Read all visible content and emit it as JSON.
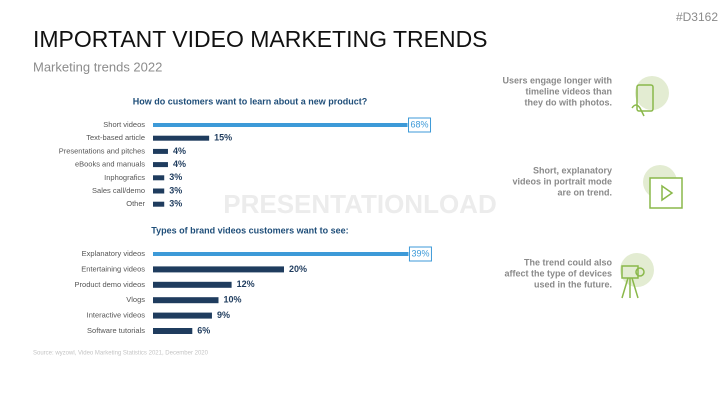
{
  "slide": {
    "code": "#D3162",
    "title": "IMPORTANT VIDEO MARKETING TRENDS",
    "subtitle": "Marketing trends 2022",
    "watermark": "PRESENTATIONLOAD",
    "source": "Source: wyzowl, Video Marketing Statistics 2021, December 2020",
    "notes": [
      {
        "lines": [
          "Users engage longer with",
          "timeline videos than",
          "they do with photos."
        ]
      },
      {
        "lines": [
          "Short, explanatory",
          "videos in portrait mode",
          "are on trend."
        ]
      },
      {
        "lines": [
          "The trend could also",
          "affect the type of devices",
          "used in the future."
        ]
      }
    ]
  },
  "chart_data": [
    {
      "type": "bar",
      "orientation": "horizontal",
      "title": "How do customers want to learn about a new product?",
      "categories": [
        "Short videos",
        "Text-based article",
        "Presentations and pitches",
        "eBooks and manuals",
        "Inphografics",
        "Sales call/demo",
        "Other"
      ],
      "values": [
        68,
        15,
        4,
        4,
        3,
        3,
        3
      ],
      "value_labels": [
        "68%",
        "15%",
        "4%",
        "4%",
        "3%",
        "3%",
        "3%"
      ],
      "colors": [
        "#3d9ad8",
        "#1f3c5e",
        "#1f3c5e",
        "#1f3c5e",
        "#1f3c5e",
        "#1f3c5e",
        "#1f3c5e"
      ],
      "xlim": [
        0,
        70
      ]
    },
    {
      "type": "bar",
      "orientation": "horizontal",
      "title": "Types of brand videos customers want to see:",
      "categories": [
        "Explanatory videos",
        "Entertaining videos",
        "Product demo videos",
        "Vlogs",
        "Interactive videos",
        "Software tutorials"
      ],
      "values": [
        39,
        20,
        12,
        10,
        9,
        6
      ],
      "value_labels": [
        "39%",
        "20%",
        "12%",
        "10%",
        "9%",
        "6%"
      ],
      "colors": [
        "#3d9ad8",
        "#1f3c5e",
        "#1f3c5e",
        "#1f3c5e",
        "#1f3c5e",
        "#1f3c5e"
      ],
      "xlim": [
        0,
        40
      ]
    }
  ]
}
